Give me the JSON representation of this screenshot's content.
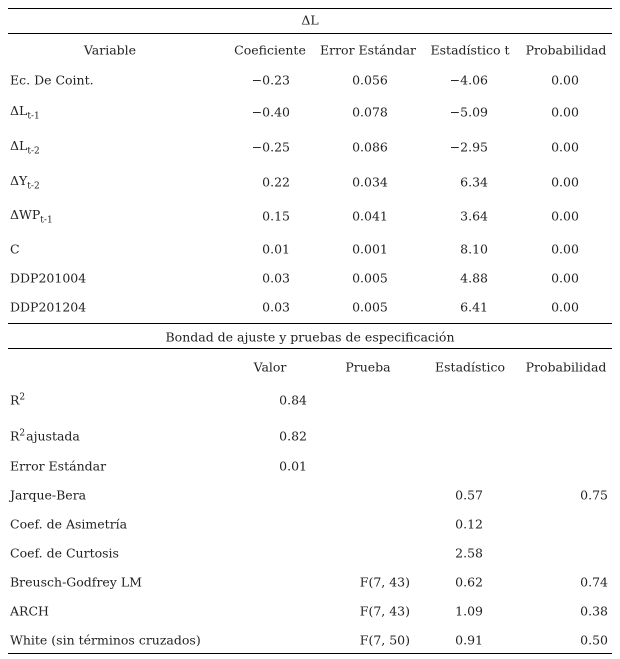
{
  "header": {
    "title": "ΔL"
  },
  "table1": {
    "columns": [
      "Variable",
      "Coeficiente",
      "Error Estándar",
      "Estadístico t",
      "Probabilidad"
    ],
    "rows": [
      {
        "label": {
          "base": "Ec. De Coint."
        },
        "cells": [
          "−0.23",
          "0.056",
          "−4.06",
          "0.00"
        ]
      },
      {
        "label": {
          "base": "ΔL",
          "sub": "t-1"
        },
        "cells": [
          "−0.40",
          "0.078",
          "−5.09",
          "0.00"
        ]
      },
      {
        "label": {
          "base": "ΔL",
          "sub": "t-2"
        },
        "cells": [
          "−0.25",
          "0.086",
          "−2.95",
          "0.00"
        ]
      },
      {
        "label": {
          "base": "ΔY",
          "sub": "t-2"
        },
        "cells": [
          "0.22",
          "0.034",
          "6.34",
          "0.00"
        ]
      },
      {
        "label": {
          "base": "ΔWP",
          "sub": "t-1"
        },
        "cells": [
          "0.15",
          "0.041",
          "3.64",
          "0.00"
        ]
      },
      {
        "label": {
          "base": "C"
        },
        "cells": [
          "0.01",
          "0.001",
          "8.10",
          "0.00"
        ]
      },
      {
        "label": {
          "base": "DDP201004"
        },
        "cells": [
          "0.03",
          "0.005",
          "4.88",
          "0.00"
        ]
      },
      {
        "label": {
          "base": "DDP201204"
        },
        "cells": [
          "0.03",
          "0.005",
          "6.41",
          "0.00"
        ]
      }
    ]
  },
  "table2": {
    "title": "Bondad de ajuste y pruebas de especificación",
    "columns": [
      "Valor",
      "Prueba",
      "Estadístico",
      "Probabilidad"
    ],
    "rows": [
      {
        "label": {
          "base": "R",
          "sup": "2"
        },
        "cells": [
          "0.84",
          null,
          null,
          null
        ]
      },
      {
        "label": {
          "base": "R",
          "sup": "2",
          "rest": "ajustada"
        },
        "cells": [
          "0.82",
          null,
          null,
          null
        ]
      },
      {
        "label": {
          "base": "Error Estándar"
        },
        "cells": [
          "0.01",
          null,
          null,
          null
        ]
      },
      {
        "label": {
          "base": "Jarque-Bera"
        },
        "cells": [
          null,
          null,
          "0.57",
          "0.75"
        ]
      },
      {
        "label": {
          "base": "Coef. de Asimetría"
        },
        "cells": [
          null,
          null,
          "0.12",
          null
        ]
      },
      {
        "label": {
          "base": "Coef. de Curtosis"
        },
        "cells": [
          null,
          null,
          "2.58",
          null
        ]
      },
      {
        "label": {
          "base": "Breusch-Godfrey LM"
        },
        "cells": [
          null,
          "F(7, 43)",
          "0.62",
          "0.74"
        ]
      },
      {
        "label": {
          "base": "ARCH"
        },
        "cells": [
          null,
          "F(7, 43)",
          "1.09",
          "0.38"
        ]
      },
      {
        "label": {
          "base": "White (sin términos cruzados)"
        },
        "cells": [
          null,
          "F(7, 50)",
          "0.91",
          "0.50"
        ]
      }
    ]
  }
}
